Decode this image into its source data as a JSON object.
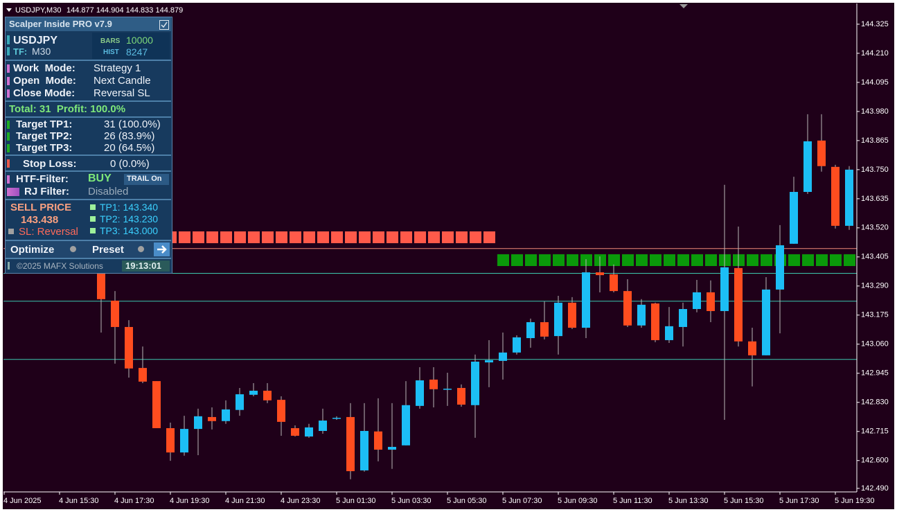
{
  "header": {
    "symbol": "USDJPY,M30",
    "prices": "144.877 144.904 144.833 144.879"
  },
  "chart_data": {
    "type": "candlestick",
    "categories": [
      "4 Jun 2025",
      null,
      null,
      null,
      "4 Jun 15:30",
      null,
      null,
      null,
      "4 Jun 17:30",
      null,
      null,
      null,
      "4 Jun 19:30",
      null,
      null,
      null,
      "4 Jun 21:30",
      null,
      null,
      null,
      "4 Jun 23:30",
      null,
      null,
      null,
      "5 Jun 01:30",
      null,
      null,
      null,
      "5 Jun 03:30",
      null,
      null,
      null,
      "5 Jun 05:30",
      null,
      null,
      null,
      "5 Jun 07:30",
      null,
      null,
      null,
      "5 Jun 09:30",
      null,
      null,
      null,
      "5 Jun 11:30",
      null,
      null,
      null,
      "5 Jun 13:30",
      null,
      null,
      null,
      "5 Jun 15:30",
      null,
      null,
      null,
      "5 Jun 17:30",
      null,
      null,
      null,
      "5 Jun 19:30",
      null
    ],
    "open": [
      null,
      null,
      null,
      null,
      null,
      null,
      null,
      143.347,
      143.232,
      143.128,
      142.966,
      142.914,
      142.728,
      142.632,
      142.725,
      142.772,
      142.756,
      142.8,
      142.86,
      142.876,
      142.84,
      142.728,
      142.695,
      142.717,
      142.766,
      142.772,
      142.561,
      142.715,
      142.643,
      142.66,
      142.816,
      142.92,
      142.882,
      142.887,
      142.819,
      142.988,
      142.994,
      143.027,
      143.084,
      143.147,
      143.092,
      143.224,
      143.125,
      143.344,
      143.336,
      143.27,
      143.134,
      143.221,
      143.076,
      143.128,
      143.199,
      143.265,
      143.191,
      143.361,
      143.071,
      143.016,
      143.276,
      143.457,
      143.662,
      143.865,
      143.761,
      143.528
    ],
    "high": [
      null,
      null,
      null,
      null,
      null,
      null,
      null,
      143.366,
      143.27,
      143.155,
      143.051,
      142.914,
      142.75,
      142.777,
      142.805,
      142.81,
      142.838,
      142.887,
      142.906,
      142.906,
      142.854,
      142.739,
      142.745,
      142.805,
      142.775,
      142.827,
      142.827,
      142.846,
      142.827,
      142.914,
      142.969,
      142.969,
      142.947,
      142.901,
      143.019,
      143.076,
      143.106,
      143.095,
      143.161,
      143.229,
      143.251,
      143.246,
      143.396,
      143.407,
      143.375,
      143.317,
      143.238,
      143.224,
      143.207,
      143.224,
      143.314,
      143.312,
      143.69,
      143.525,
      143.125,
      143.325,
      143.531,
      143.722,
      143.969,
      143.969,
      143.769,
      143.764
    ],
    "low": [
      null,
      null,
      null,
      null,
      null,
      null,
      null,
      143.106,
      142.983,
      142.928,
      142.906,
      142.728,
      142.599,
      142.619,
      142.621,
      142.723,
      142.745,
      142.777,
      142.854,
      142.827,
      142.698,
      142.695,
      142.69,
      142.706,
      142.761,
      142.526,
      142.556,
      142.597,
      142.567,
      142.66,
      142.805,
      142.81,
      142.816,
      142.813,
      142.69,
      142.89,
      142.92,
      143.019,
      143.046,
      143.079,
      143.019,
      143.12,
      143.084,
      143.265,
      143.265,
      143.128,
      143.125,
      143.068,
      143.065,
      143.051,
      143.186,
      143.147,
      142.761,
      143.051,
      142.893,
      143.016,
      143.103,
      143.457,
      143.654,
      143.742,
      143.517,
      143.512
    ],
    "close": [
      null,
      null,
      null,
      null,
      null,
      null,
      null,
      143.238,
      143.128,
      142.964,
      142.912,
      142.728,
      142.632,
      142.725,
      142.775,
      142.756,
      142.802,
      142.862,
      142.876,
      142.838,
      142.753,
      142.698,
      142.731,
      142.758,
      142.769,
      142.558,
      142.717,
      142.643,
      142.654,
      142.819,
      142.917,
      142.882,
      142.884,
      142.821,
      142.991,
      142.997,
      143.027,
      143.087,
      143.147,
      143.09,
      143.224,
      143.125,
      143.344,
      143.333,
      143.27,
      143.134,
      143.216,
      143.076,
      143.131,
      143.199,
      143.265,
      143.191,
      143.364,
      143.071,
      143.016,
      143.276,
      143.451,
      143.662,
      143.862,
      143.764,
      143.528,
      143.75
    ],
    "up_color": "#1cbef5",
    "down_color": "#ff4d1f",
    "wick_color": "#b8b8b8",
    "levels": [
      143.438,
      143.34,
      143.23,
      143.0
    ],
    "level_colors": [
      "#f08a78",
      "#3cc8b0",
      "#3cc8b0",
      "#3cc8b0"
    ],
    "ylim": [
      142.476,
      144.407
    ],
    "yticks": [
      144.325,
      {
        "value": 144.21,
        "label": "144.210"
      },
      144.095,
      {
        "value": 143.98,
        "label": "143.980"
      },
      143.865,
      {
        "value": 143.75,
        "label": "143.750"
      },
      143.635,
      {
        "value": 143.52,
        "label": "143.520"
      },
      143.405,
      {
        "value": 143.29,
        "label": "143.290"
      },
      143.175,
      {
        "value": 143.06,
        "label": "143.060"
      },
      142.945,
      {
        "value": 142.83,
        "label": "142.830"
      },
      142.715,
      {
        "value": 142.6,
        "label": "142.600"
      },
      {
        "value": 142.49,
        "label": "142.490"
      }
    ],
    "grid": false
  },
  "panel": {
    "title": "Scalper Inside PRO v7.9",
    "symbol": "USDJPY",
    "tf_label": "TF:",
    "tf": "M30",
    "bars_label": "BARS",
    "bars": "10000",
    "hist_label": "HIST",
    "hist": "8247",
    "modes": [
      {
        "label": "Work  Mode:",
        "value": "Strategy 1"
      },
      {
        "label": "Open  Mode:",
        "value": "Next Candle"
      },
      {
        "label": "Close Mode:",
        "value": "Reversal SL"
      }
    ],
    "total": "Total: 31  Profit: 100.0%",
    "targets": [
      {
        "label": "Target TP1:",
        "value": "31 (100.0%)"
      },
      {
        "label": "Target TP2:",
        "value": "26 (83.9%)"
      },
      {
        "label": "Target TP3:",
        "value": "20 (64.5%)"
      }
    ],
    "stop_loss": {
      "label": "Stop Loss:",
      "value": "0 (0.0%)"
    },
    "htf_filter": {
      "label": "HTF-Filter:",
      "value": "BUY"
    },
    "trail": "TRAIL On",
    "rj_filter": {
      "label": "RJ Filter:",
      "value": "Disabled"
    },
    "sell_label": "SELL PRICE",
    "sell_price": "143.438",
    "sl": "SL: Reversal",
    "tps": [
      "TP1: 143.340",
      "TP2: 143.230",
      "TP3: 143.000"
    ],
    "buttons": [
      "Optimize",
      "Preset"
    ],
    "copyright": "©2025 MAFX Solutions",
    "time": "19:13:01"
  }
}
